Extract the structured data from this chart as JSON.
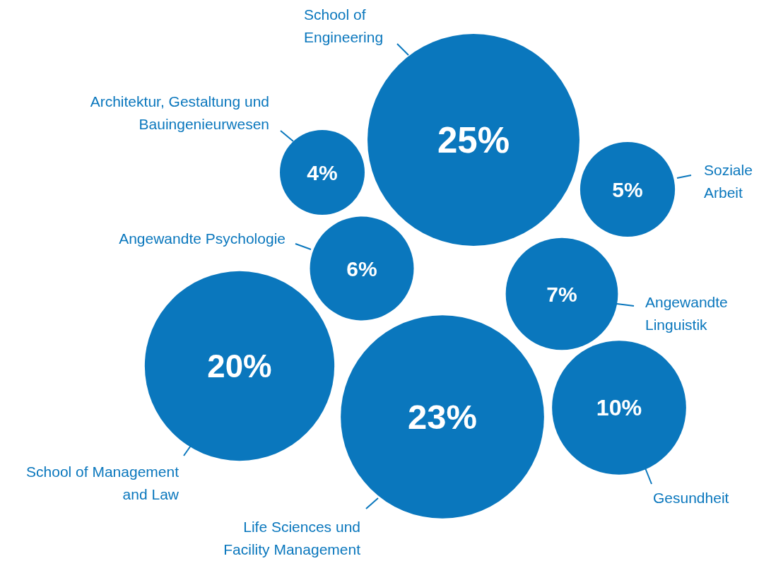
{
  "chart_data": {
    "type": "other",
    "categories": [
      "School of Engineering",
      "Architektur, Gestaltung und Bauingenieurwesen",
      "Soziale Arbeit",
      "Angewandte Psychologie",
      "Angewandte Linguistik",
      "School of Management and Law",
      "Life Sciences und Facility Management",
      "Gesundheit"
    ],
    "values": [
      25,
      4,
      5,
      6,
      7,
      20,
      23,
      10
    ],
    "value_labels": [
      "25%",
      "4%",
      "5%",
      "6%",
      "7%",
      "20%",
      "23%",
      "10%"
    ],
    "color": "#0a77bd"
  }
}
